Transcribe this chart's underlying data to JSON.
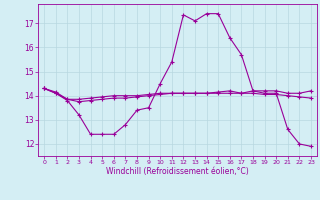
{
  "background_color": "#d4eef4",
  "grid_color": "#b8d8e0",
  "line_color": "#990099",
  "xlabel": "Windchill (Refroidissement éolien,°C)",
  "xlim": [
    -0.5,
    23.5
  ],
  "ylim": [
    11.5,
    17.8
  ],
  "yticks": [
    12,
    13,
    14,
    15,
    16,
    17
  ],
  "xticks": [
    0,
    1,
    2,
    3,
    4,
    5,
    6,
    7,
    8,
    9,
    10,
    11,
    12,
    13,
    14,
    15,
    16,
    17,
    18,
    19,
    20,
    21,
    22,
    23
  ],
  "series": [
    {
      "x": [
        0,
        1,
        2,
        3,
        4,
        5,
        6,
        7,
        8,
        9,
        10,
        11,
        12,
        13,
        14,
        15,
        16,
        17,
        18,
        19,
        20,
        21,
        22,
        23
      ],
      "y": [
        14.3,
        14.1,
        13.8,
        13.2,
        12.4,
        12.4,
        12.4,
        12.8,
        13.4,
        13.5,
        14.5,
        15.4,
        17.35,
        17.1,
        17.4,
        17.4,
        16.4,
        15.7,
        14.2,
        14.1,
        14.1,
        12.6,
        12.0,
        11.9
      ]
    },
    {
      "x": [
        0,
        1,
        2,
        3,
        4,
        5,
        6,
        7,
        8,
        9,
        10,
        11,
        12,
        13,
        14,
        15,
        16,
        17,
        18,
        19,
        20,
        21,
        22,
        23
      ],
      "y": [
        14.3,
        14.15,
        13.85,
        13.85,
        13.9,
        13.95,
        14.0,
        14.0,
        14.0,
        14.05,
        14.1,
        14.1,
        14.1,
        14.1,
        14.1,
        14.15,
        14.2,
        14.1,
        14.2,
        14.2,
        14.2,
        14.1,
        14.1,
        14.2
      ]
    },
    {
      "x": [
        0,
        1,
        2,
        3,
        4,
        5,
        6,
        7,
        8,
        9,
        10,
        11,
        12,
        13,
        14,
        15,
        16,
        17,
        18,
        19,
        20,
        21,
        22,
        23
      ],
      "y": [
        14.3,
        14.1,
        13.85,
        13.75,
        13.8,
        13.85,
        13.9,
        13.9,
        13.95,
        14.0,
        14.05,
        14.1,
        14.1,
        14.1,
        14.1,
        14.1,
        14.1,
        14.1,
        14.1,
        14.05,
        14.05,
        14.0,
        13.95,
        13.9
      ]
    }
  ]
}
